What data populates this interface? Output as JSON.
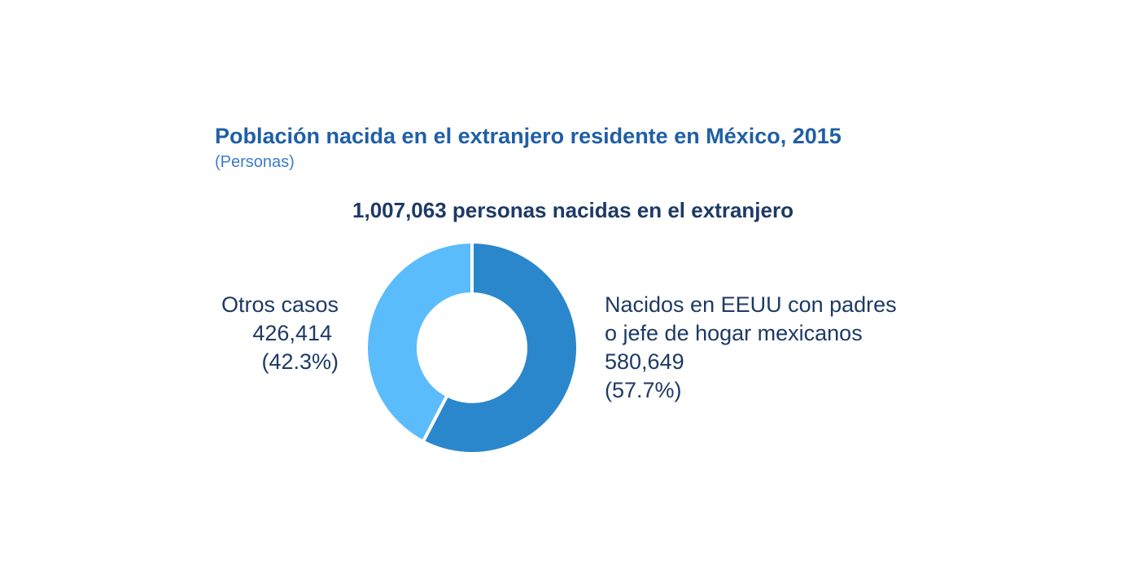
{
  "chart_data": {
    "type": "pie",
    "variant": "donut",
    "title": "Población nacida en el extranjero residente en México, 2015",
    "subtitle": "(Personas)",
    "heading": "1,007,063 personas nacidas en el extranjero",
    "total": 1007063,
    "slices": [
      {
        "name_lines": [
          "Nacidos en EEUU con padres",
          "o jefe de hogar mexicanos"
        ],
        "value": 580649,
        "value_label": "580,649",
        "percent": 57.7,
        "percent_label": "(57.7%)",
        "color": "#2a87cc"
      },
      {
        "name_lines": [
          "Otros casos"
        ],
        "value": 426414,
        "value_label": "426,414",
        "percent": 42.3,
        "percent_label": "(42.3%)",
        "color": "#5bbcfb"
      }
    ]
  }
}
